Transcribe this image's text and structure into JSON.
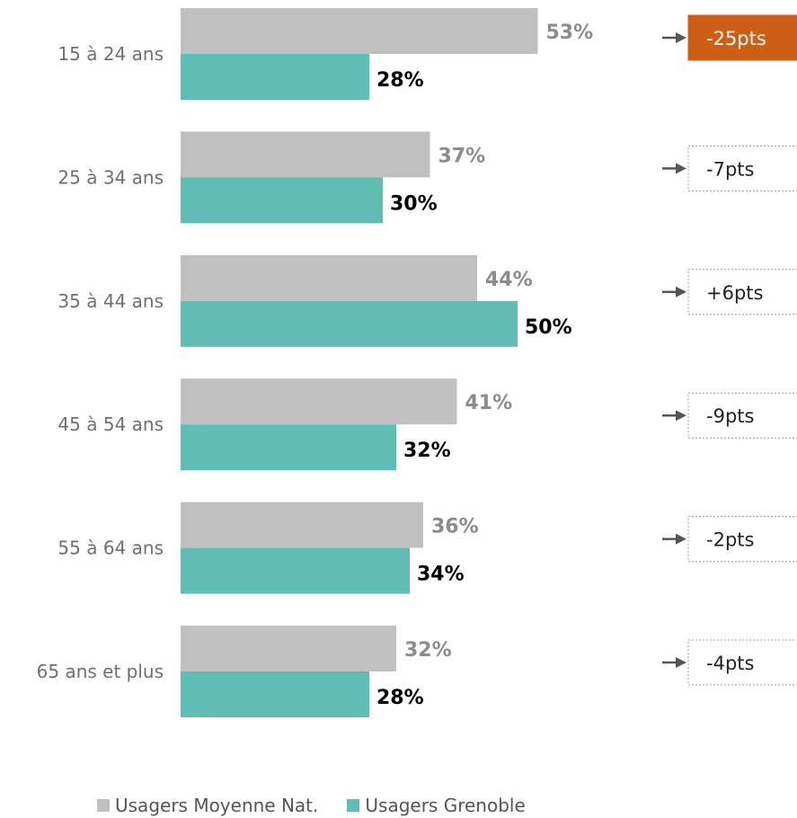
{
  "colors": {
    "national": "#c0c0c0",
    "grenoble": "#5fbdb5",
    "highlight": "#cc5e16"
  },
  "chart_data": {
    "type": "bar",
    "orientation": "horizontal",
    "categories": [
      "15 à 24 ans",
      "25 à 34 ans",
      "35 à 44 ans",
      "45 à 54 ans",
      "55 à 64 ans",
      "65 ans et plus"
    ],
    "series": [
      {
        "name": "Usagers Moyenne Nat.",
        "values": [
          53,
          37,
          44,
          41,
          36,
          32
        ],
        "labels": [
          "53%",
          "37%",
          "44%",
          "41%",
          "36%",
          "32%"
        ]
      },
      {
        "name": "Usagers Grenoble",
        "values": [
          28,
          30,
          50,
          32,
          34,
          28
        ],
        "labels": [
          "28%",
          "30%",
          "50%",
          "32%",
          "34%",
          "28%"
        ]
      }
    ],
    "differences": [
      "-25pts",
      "-7pts",
      "+6pts",
      "-9pts",
      "-2pts",
      "-4pts"
    ],
    "highlighted_difference": 0,
    "xlim": [
      0,
      100
    ],
    "legend_position": "bottom"
  }
}
